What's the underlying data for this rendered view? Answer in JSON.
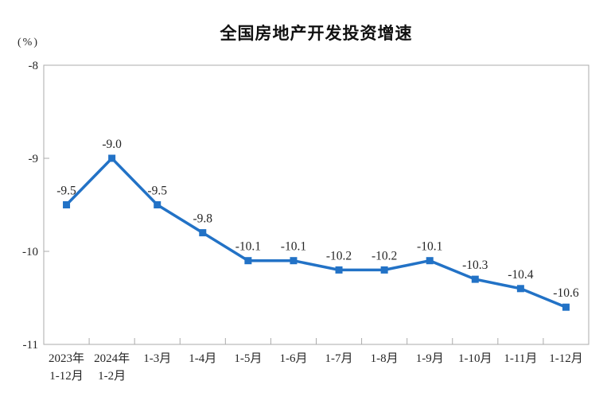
{
  "chart": {
    "unit_label": "(%)"
  },
  "chart_data": {
    "type": "line",
    "title": "全国房地产开发投资增速",
    "unit": "(%)",
    "categories": [
      "2023年\n1-12月",
      "2024年\n1-2月",
      "1-3月",
      "1-4月",
      "1-5月",
      "1-6月",
      "1-7月",
      "1-8月",
      "1-9月",
      "1-10月",
      "1-11月",
      "1-12月"
    ],
    "values": [
      -9.5,
      -9.0,
      -9.5,
      -9.8,
      -10.1,
      -10.1,
      -10.2,
      -10.2,
      -10.1,
      -10.3,
      -10.4,
      -10.6
    ],
    "data_labels": [
      "-9.5",
      "-9.0",
      "-9.5",
      "-9.8",
      "-10.1",
      "-10.1",
      "-10.2",
      "-10.2",
      "-10.1",
      "-10.3",
      "-10.4",
      "-10.6"
    ],
    "xlabel": "",
    "ylabel": "",
    "ylim": [
      -11,
      -8
    ],
    "y_ticks": [
      -8,
      -9,
      -10,
      -11
    ],
    "grid": false,
    "legend_position": "none",
    "colors": {
      "line": "#2272C6",
      "marker": "#2272C6",
      "text": "#262626",
      "axis": "#ABABAB",
      "title": "#111111"
    }
  }
}
